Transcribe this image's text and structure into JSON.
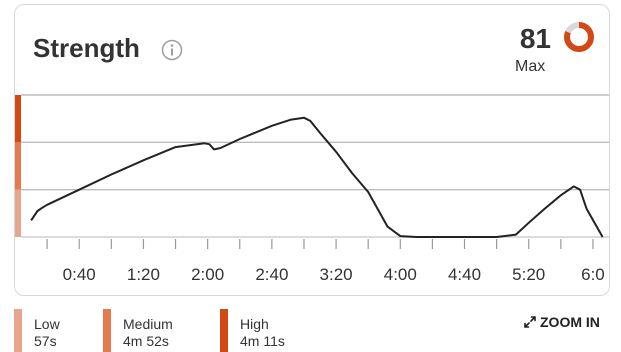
{
  "card": {
    "title": "Strength",
    "score": "81",
    "score_label": "Max",
    "score_fraction": 0.81,
    "info_icon": "info-icon"
  },
  "colors": {
    "low": "#e8a58e",
    "medium": "#e57a4f",
    "high": "#d24915",
    "ring_track": "#d9d9d9",
    "line": "#222222",
    "grid": "#bdbdbd"
  },
  "chart_data": {
    "type": "line",
    "title": "",
    "xlabel": "",
    "ylabel": "",
    "x_tick_labels": [
      "0:40",
      "1:20",
      "2:00",
      "2:40",
      "3:20",
      "4:00",
      "4:40",
      "5:20",
      "6:0"
    ],
    "xlim": [
      0,
      370
    ],
    "ylim": [
      0,
      3
    ],
    "grid": true,
    "zones": [
      {
        "name": "Low",
        "range": [
          0,
          1
        ]
      },
      {
        "name": "Medium",
        "range": [
          1,
          2
        ]
      },
      {
        "name": "High",
        "range": [
          2,
          3
        ]
      }
    ],
    "series": [
      {
        "x": [
          10,
          14,
          17,
          20,
          40,
          60,
          80,
          100,
          118,
          121,
          124,
          128,
          140,
          160,
          172,
          180,
          184,
          190,
          200,
          210,
          220,
          232,
          240,
          250,
          260,
          270,
          300,
          312,
          320,
          330,
          340,
          348,
          352,
          356,
          366
        ],
        "y": [
          0.35,
          0.55,
          0.62,
          0.68,
          1.0,
          1.32,
          1.62,
          1.9,
          1.98,
          1.96,
          1.85,
          1.88,
          2.07,
          2.35,
          2.48,
          2.52,
          2.45,
          2.2,
          1.8,
          1.35,
          0.95,
          0.22,
          0.02,
          0.0,
          0.0,
          0.0,
          0.0,
          0.05,
          0.3,
          0.6,
          0.88,
          1.07,
          1.0,
          0.6,
          0.0
        ]
      }
    ]
  },
  "legend": [
    {
      "label": "Low",
      "time": "57s"
    },
    {
      "label": "Medium",
      "time": "4m 52s"
    },
    {
      "label": "High",
      "time": "4m 11s"
    }
  ],
  "zoom": {
    "label": "ZOOM IN",
    "icon": "expand-icon"
  }
}
